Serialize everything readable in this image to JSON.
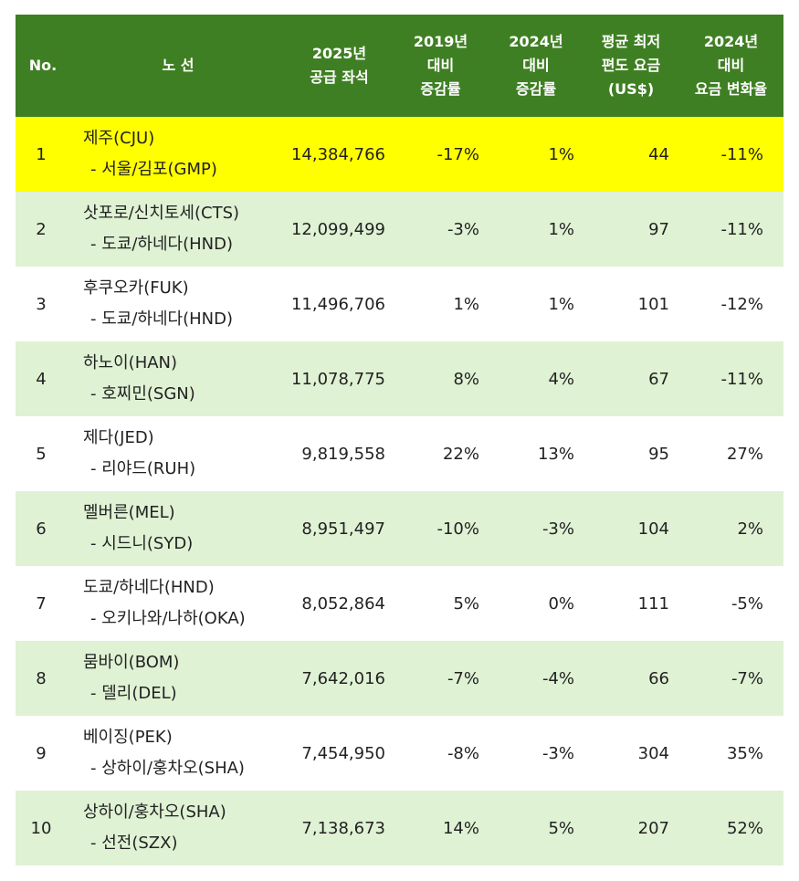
{
  "table": {
    "headers": {
      "no": "No.",
      "route": "노 선",
      "seats": [
        "2025년",
        "공급 좌석"
      ],
      "change_2019": [
        "2019년",
        "대비",
        "증감률"
      ],
      "change_2024": [
        "2024년",
        "대비",
        "증감률"
      ],
      "avg_fare": [
        "평균 최저",
        "편도 요금",
        "(US$)"
      ],
      "fare_change": [
        "2024년",
        "대비",
        "요금 변화율"
      ]
    },
    "rows": [
      {
        "no": "1",
        "from": "제주(CJU)",
        "to": "- 서울/김포(GMP)",
        "seats": "14,384,766",
        "change_2019": "-17%",
        "change_2024": "1%",
        "avg_fare": "44",
        "fare_change": "-11%"
      },
      {
        "no": "2",
        "from": "삿포로/신치토세(CTS)",
        "to": "- 도쿄/하네다(HND)",
        "seats": "12,099,499",
        "change_2019": "-3%",
        "change_2024": "1%",
        "avg_fare": "97",
        "fare_change": "-11%"
      },
      {
        "no": "3",
        "from": "후쿠오카(FUK)",
        "to": "- 도쿄/하네다(HND)",
        "seats": "11,496,706",
        "change_2019": "1%",
        "change_2024": "1%",
        "avg_fare": "101",
        "fare_change": "-12%"
      },
      {
        "no": "4",
        "from": "하노이(HAN)",
        "to": "- 호찌민(SGN)",
        "seats": "11,078,775",
        "change_2019": "8%",
        "change_2024": "4%",
        "avg_fare": "67",
        "fare_change": "-11%"
      },
      {
        "no": "5",
        "from": "제다(JED)",
        "to": "- 리야드(RUH)",
        "seats": "9,819,558",
        "change_2019": "22%",
        "change_2024": "13%",
        "avg_fare": "95",
        "fare_change": "27%"
      },
      {
        "no": "6",
        "from": "멜버른(MEL)",
        "to": "- 시드니(SYD)",
        "seats": "8,951,497",
        "change_2019": "-10%",
        "change_2024": "-3%",
        "avg_fare": "104",
        "fare_change": "2%"
      },
      {
        "no": "7",
        "from": "도쿄/하네다(HND)",
        "to": "- 오키나와/나하(OKA)",
        "seats": "8,052,864",
        "change_2019": "5%",
        "change_2024": "0%",
        "avg_fare": "111",
        "fare_change": "-5%"
      },
      {
        "no": "8",
        "from": "뭄바이(BOM)",
        "to": "- 델리(DEL)",
        "seats": "7,642,016",
        "change_2019": "-7%",
        "change_2024": "-4%",
        "avg_fare": "66",
        "fare_change": "-7%"
      },
      {
        "no": "9",
        "from": "베이징(PEK)",
        "to": "- 상하이/훙차오(SHA)",
        "seats": "7,454,950",
        "change_2019": "-8%",
        "change_2024": "-3%",
        "avg_fare": "304",
        "fare_change": "35%"
      },
      {
        "no": "10",
        "from": "상하이/훙차오(SHA)",
        "to": "- 선전(SZX)",
        "seats": "7,138,673",
        "change_2019": "14%",
        "change_2024": "5%",
        "avg_fare": "207",
        "fare_change": "52%"
      }
    ]
  }
}
